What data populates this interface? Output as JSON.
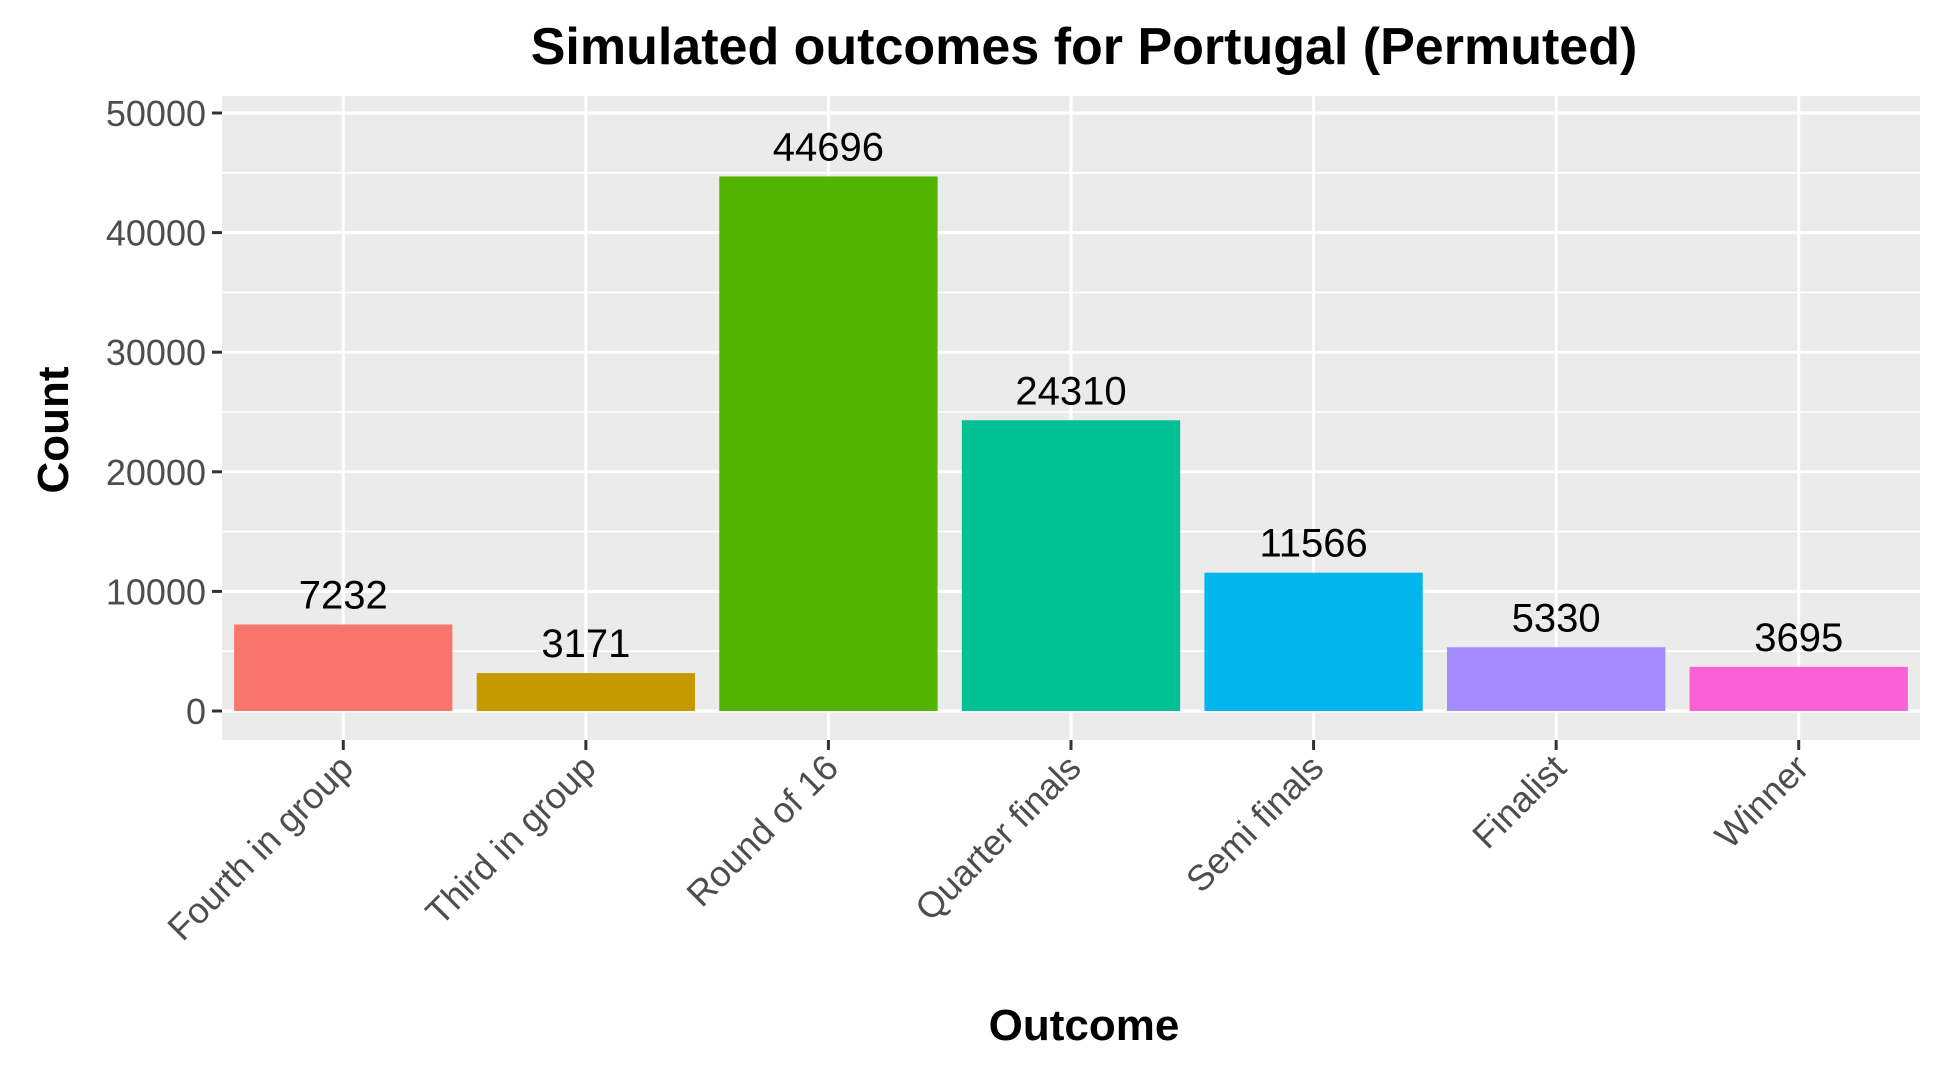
{
  "chart_data": {
    "type": "bar",
    "title": "Simulated outcomes for Portugal (Permuted)",
    "xlabel": "Outcome",
    "ylabel": "Count",
    "ylim": [
      0,
      52000
    ],
    "yticks": [
      0,
      10000,
      20000,
      30000,
      40000,
      50000
    ],
    "grid": true,
    "legend": "none",
    "categories": [
      "Fourth in group",
      "Third in group",
      "Round of 16",
      "Quarter finals",
      "Semi finals",
      "Finalist",
      "Winner"
    ],
    "values": [
      7232,
      3171,
      44696,
      24310,
      11566,
      5330,
      3695
    ],
    "colors": [
      "#F8766D",
      "#C49A00",
      "#53B400",
      "#00C094",
      "#00B6EB",
      "#A58AFF",
      "#FB61D7"
    ],
    "panel_background": "#EBEBEB",
    "grid_color": "#FFFFFF"
  }
}
